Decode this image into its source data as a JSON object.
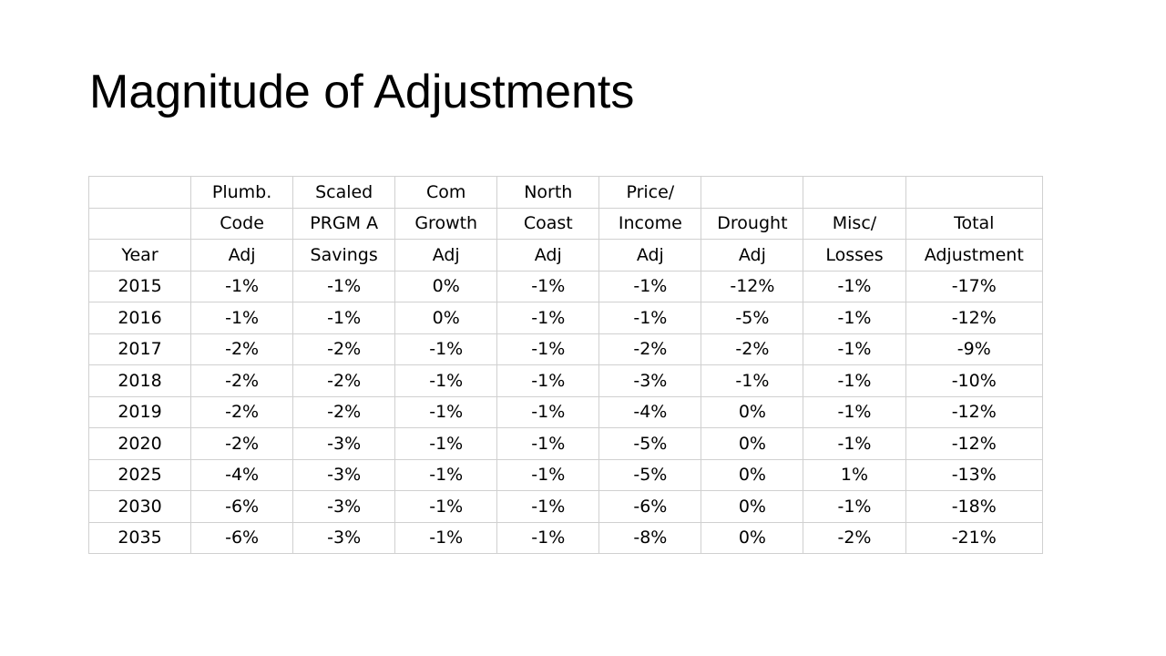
{
  "title": "Magnitude of Adjustments",
  "table": {
    "header_rows": [
      [
        "",
        "Plumb.",
        "Scaled",
        "Com",
        "North",
        "Price/",
        "",
        "",
        ""
      ],
      [
        "",
        "Code",
        "PRGM A",
        "Growth",
        "Coast",
        "Income",
        "Drought",
        "Misc/",
        "Total"
      ],
      [
        "Year",
        "Adj",
        "Savings",
        "Adj",
        "Adj",
        "Adj",
        "Adj",
        "Losses",
        "Adjustment"
      ]
    ],
    "rows": [
      [
        "2015",
        "-1%",
        "-1%",
        "0%",
        "-1%",
        "-1%",
        "-12%",
        "-1%",
        "-17%"
      ],
      [
        "2016",
        "-1%",
        "-1%",
        "0%",
        "-1%",
        "-1%",
        "-5%",
        "-1%",
        "-12%"
      ],
      [
        "2017",
        "-2%",
        "-2%",
        "-1%",
        "-1%",
        "-2%",
        "-2%",
        "-1%",
        "-9%"
      ],
      [
        "2018",
        "-2%",
        "-2%",
        "-1%",
        "-1%",
        "-3%",
        "-1%",
        "-1%",
        "-10%"
      ],
      [
        "2019",
        "-2%",
        "-2%",
        "-1%",
        "-1%",
        "-4%",
        "0%",
        "-1%",
        "-12%"
      ],
      [
        "2020",
        "-2%",
        "-3%",
        "-1%",
        "-1%",
        "-5%",
        "0%",
        "-1%",
        "-12%"
      ],
      [
        "2025",
        "-4%",
        "-3%",
        "-1%",
        "-1%",
        "-5%",
        "0%",
        "1%",
        "-13%"
      ],
      [
        "2030",
        "-6%",
        "-3%",
        "-1%",
        "-1%",
        "-6%",
        "0%",
        "-1%",
        "-18%"
      ],
      [
        "2035",
        "-6%",
        "-3%",
        "-1%",
        "-1%",
        "-8%",
        "0%",
        "-2%",
        "-21%"
      ]
    ]
  }
}
